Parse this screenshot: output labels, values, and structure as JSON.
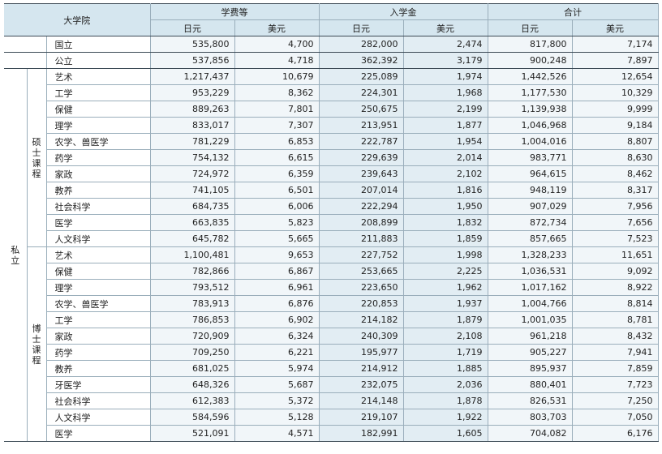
{
  "header": {
    "university": "大学院",
    "tuition": "学费等",
    "admission": "入学金",
    "total": "合计",
    "jpy": "日元",
    "usd": "美元"
  },
  "rows_public": [
    {
      "label": "国立",
      "t_jpy": "535,800",
      "t_usd": "4,700",
      "a_jpy": "282,000",
      "a_usd": "2,474",
      "s_jpy": "817,800",
      "s_usd": "7,174"
    },
    {
      "label": "公立",
      "t_jpy": "537,856",
      "t_usd": "4,718",
      "a_jpy": "362,392",
      "a_usd": "3,179",
      "s_jpy": "900,248",
      "s_usd": "7,897"
    }
  ],
  "private_label": "私立",
  "master": {
    "label": "硕士课程",
    "rows": [
      {
        "label": "艺术",
        "t_jpy": "1,217,437",
        "t_usd": "10,679",
        "a_jpy": "225,089",
        "a_usd": "1,974",
        "s_jpy": "1,442,526",
        "s_usd": "12,654"
      },
      {
        "label": "工学",
        "t_jpy": "953,229",
        "t_usd": "8,362",
        "a_jpy": "224,301",
        "a_usd": "1,968",
        "s_jpy": "1,177,530",
        "s_usd": "10,329"
      },
      {
        "label": "保健",
        "t_jpy": "889,263",
        "t_usd": "7,801",
        "a_jpy": "250,675",
        "a_usd": "2,199",
        "s_jpy": "1,139,938",
        "s_usd": "9,999"
      },
      {
        "label": "理学",
        "t_jpy": "833,017",
        "t_usd": "7,307",
        "a_jpy": "213,951",
        "a_usd": "1,877",
        "s_jpy": "1,046,968",
        "s_usd": "9,184"
      },
      {
        "label": "农学、兽医学",
        "t_jpy": "781,229",
        "t_usd": "6,853",
        "a_jpy": "222,787",
        "a_usd": "1,954",
        "s_jpy": "1,004,016",
        "s_usd": "8,807"
      },
      {
        "label": "药学",
        "t_jpy": "754,132",
        "t_usd": "6,615",
        "a_jpy": "229,639",
        "a_usd": "2,014",
        "s_jpy": "983,771",
        "s_usd": "8,630"
      },
      {
        "label": "家政",
        "t_jpy": "724,972",
        "t_usd": "6,359",
        "a_jpy": "239,643",
        "a_usd": "2,102",
        "s_jpy": "964,615",
        "s_usd": "8,462"
      },
      {
        "label": "教养",
        "t_jpy": "741,105",
        "t_usd": "6,501",
        "a_jpy": "207,014",
        "a_usd": "1,816",
        "s_jpy": "948,119",
        "s_usd": "8,317"
      },
      {
        "label": "社会科学",
        "t_jpy": "684,735",
        "t_usd": "6,006",
        "a_jpy": "222,294",
        "a_usd": "1,950",
        "s_jpy": "907,029",
        "s_usd": "7,956"
      },
      {
        "label": "医学",
        "t_jpy": "663,835",
        "t_usd": "5,823",
        "a_jpy": "208,899",
        "a_usd": "1,832",
        "s_jpy": "872,734",
        "s_usd": "7,656"
      },
      {
        "label": "人文科学",
        "t_jpy": "645,782",
        "t_usd": "5,665",
        "a_jpy": "211,883",
        "a_usd": "1,859",
        "s_jpy": "857,665",
        "s_usd": "7,523"
      }
    ]
  },
  "doctor": {
    "label": "博士课程",
    "rows": [
      {
        "label": "艺术",
        "t_jpy": "1,100,481",
        "t_usd": "9,653",
        "a_jpy": "227,752",
        "a_usd": "1,998",
        "s_jpy": "1,328,233",
        "s_usd": "11,651"
      },
      {
        "label": "保健",
        "t_jpy": "782,866",
        "t_usd": "6,867",
        "a_jpy": "253,665",
        "a_usd": "2,225",
        "s_jpy": "1,036,531",
        "s_usd": "9,092"
      },
      {
        "label": "理学",
        "t_jpy": "793,512",
        "t_usd": "6,961",
        "a_jpy": "223,650",
        "a_usd": "1,962",
        "s_jpy": "1,017,162",
        "s_usd": "8,922"
      },
      {
        "label": "农学、兽医学",
        "t_jpy": "783,913",
        "t_usd": "6,876",
        "a_jpy": "220,853",
        "a_usd": "1,937",
        "s_jpy": "1,004,766",
        "s_usd": "8,814"
      },
      {
        "label": "工学",
        "t_jpy": "786,853",
        "t_usd": "6,902",
        "a_jpy": "214,182",
        "a_usd": "1,879",
        "s_jpy": "1,001,035",
        "s_usd": "8,781"
      },
      {
        "label": "家政",
        "t_jpy": "720,909",
        "t_usd": "6,324",
        "a_jpy": "240,309",
        "a_usd": "2,108",
        "s_jpy": "961,218",
        "s_usd": "8,432"
      },
      {
        "label": "药学",
        "t_jpy": "709,250",
        "t_usd": "6,221",
        "a_jpy": "195,977",
        "a_usd": "1,719",
        "s_jpy": "905,227",
        "s_usd": "7,941"
      },
      {
        "label": "教养",
        "t_jpy": "681,025",
        "t_usd": "5,974",
        "a_jpy": "214,912",
        "a_usd": "1,885",
        "s_jpy": "895,937",
        "s_usd": "7,859"
      },
      {
        "label": "牙医学",
        "t_jpy": "648,326",
        "t_usd": "5,687",
        "a_jpy": "232,075",
        "a_usd": "2,036",
        "s_jpy": "880,401",
        "s_usd": "7,723"
      },
      {
        "label": "社会科学",
        "t_jpy": "612,383",
        "t_usd": "5,372",
        "a_jpy": "214,148",
        "a_usd": "1,878",
        "s_jpy": "826,531",
        "s_usd": "7,250"
      },
      {
        "label": "人文科学",
        "t_jpy": "584,596",
        "t_usd": "5,128",
        "a_jpy": "219,107",
        "a_usd": "1,922",
        "s_jpy": "803,703",
        "s_usd": "7,050"
      },
      {
        "label": "医学",
        "t_jpy": "521,091",
        "t_usd": "4,571",
        "a_jpy": "182,991",
        "a_usd": "1,605",
        "s_jpy": "704,082",
        "s_usd": "6,176"
      }
    ]
  }
}
